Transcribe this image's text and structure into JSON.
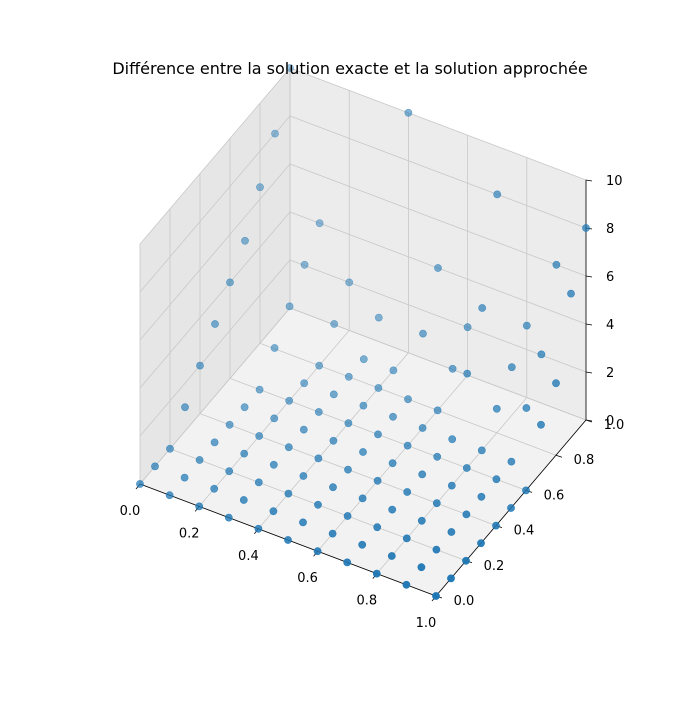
{
  "chart_data": {
    "type": "scatter3d",
    "title": "Différence entre la solution exacte et la solution approchée",
    "xlabel": "",
    "ylabel": "",
    "zlabel": "",
    "xlim": [
      0,
      1
    ],
    "ylim": [
      0,
      1
    ],
    "zlim": [
      0,
      10
    ],
    "grid": true,
    "x_ticks": [
      "0.0",
      "0.2",
      "0.4",
      "0.6",
      "0.8",
      "1.0"
    ],
    "y_ticks": [
      "0.0",
      "0.2",
      "0.4",
      "0.6",
      "0.8",
      "1.0"
    ],
    "z_ticks": [
      "0",
      "2",
      "4",
      "6",
      "8",
      "10"
    ],
    "marker_color": "#1f77b4",
    "grid_x": [
      0,
      0.1,
      0.2,
      0.3,
      0.4,
      0.5,
      0.6,
      0.7,
      0.8,
      0.9,
      1.0
    ],
    "grid_y": [
      0,
      0.1,
      0.2,
      0.3,
      0.4,
      0.5,
      0.6,
      0.7,
      0.8,
      0.9,
      1.0
    ],
    "z_values": [
      [
        0,
        0,
        0,
        0,
        0,
        0,
        0,
        0,
        0,
        0,
        0
      ],
      [
        0,
        0,
        0,
        0,
        0,
        0,
        0,
        0,
        0,
        0,
        0
      ],
      [
        0,
        0,
        0,
        0,
        0,
        0,
        0,
        0,
        0,
        0,
        0
      ],
      [
        0,
        0,
        0,
        0,
        0,
        0,
        0,
        0,
        0,
        0,
        0
      ],
      [
        0,
        0,
        0,
        0,
        0,
        0,
        0,
        0,
        0,
        0,
        0
      ],
      [
        0,
        0,
        0,
        0,
        0,
        0,
        0,
        0,
        0,
        0,
        0
      ],
      [
        0,
        0,
        0,
        0,
        0,
        0,
        0,
        0,
        0,
        0,
        0
      ],
      [
        0,
        0,
        0,
        0,
        0,
        0,
        0,
        0,
        0,
        0,
        0
      ],
      [
        0,
        0,
        0,
        0,
        0,
        0,
        0,
        0,
        0,
        0,
        0
      ],
      [
        0,
        0,
        0,
        0,
        0,
        0,
        0,
        0,
        0,
        0,
        0
      ],
      [
        0,
        0,
        0,
        0,
        0,
        0,
        0,
        0,
        0,
        0,
        0
      ]
    ],
    "elevated_points": [
      {
        "x": 0.0,
        "y": 1.0,
        "z": 10.0
      },
      {
        "x": 0.0,
        "y": 0.9,
        "z": 8.0
      },
      {
        "x": 0.0,
        "y": 0.8,
        "z": 6.5
      },
      {
        "x": 0.0,
        "y": 0.7,
        "z": 5.0
      },
      {
        "x": 0.0,
        "y": 0.6,
        "z": 4.0
      },
      {
        "x": 0.0,
        "y": 0.5,
        "z": 3.0
      },
      {
        "x": 0.0,
        "y": 0.4,
        "z": 2.0
      },
      {
        "x": 0.0,
        "y": 0.3,
        "z": 1.0
      },
      {
        "x": 0.1,
        "y": 1.0,
        "z": 4.0
      },
      {
        "x": 0.1,
        "y": 0.9,
        "z": 3.0
      },
      {
        "x": 0.1,
        "y": 0.8,
        "z": 2.0
      },
      {
        "x": 0.1,
        "y": 0.7,
        "z": 1.0
      },
      {
        "x": 0.2,
        "y": 1.0,
        "z": 2.0
      },
      {
        "x": 0.2,
        "y": 0.9,
        "z": 1.0
      },
      {
        "x": 0.3,
        "y": 1.0,
        "z": 1.0
      },
      {
        "x": 0.4,
        "y": 1.0,
        "z": 10.0
      },
      {
        "x": 0.5,
        "y": 1.0,
        "z": 4.0
      },
      {
        "x": 0.5,
        "y": 0.9,
        "z": 2.0
      },
      {
        "x": 0.6,
        "y": 1.0,
        "z": 2.0
      },
      {
        "x": 0.6,
        "y": 0.9,
        "z": 1.0
      },
      {
        "x": 0.7,
        "y": 1.0,
        "z": 8.0
      },
      {
        "x": 0.7,
        "y": 0.9,
        "z": 4.0
      },
      {
        "x": 0.7,
        "y": 0.8,
        "z": 2.0
      },
      {
        "x": 0.8,
        "y": 1.0,
        "z": 3.0
      },
      {
        "x": 0.8,
        "y": 0.9,
        "z": 2.0
      },
      {
        "x": 0.8,
        "y": 0.8,
        "z": 1.0
      },
      {
        "x": 0.9,
        "y": 1.0,
        "z": 6.0
      },
      {
        "x": 0.9,
        "y": 0.9,
        "z": 3.0
      },
      {
        "x": 0.9,
        "y": 0.8,
        "z": 1.5
      },
      {
        "x": 1.0,
        "y": 1.0,
        "z": 8.0
      },
      {
        "x": 1.0,
        "y": 0.9,
        "z": 6.0
      },
      {
        "x": 1.0,
        "y": 0.8,
        "z": 3.0
      },
      {
        "x": 1.0,
        "y": 0.7,
        "z": 2.0
      }
    ]
  }
}
